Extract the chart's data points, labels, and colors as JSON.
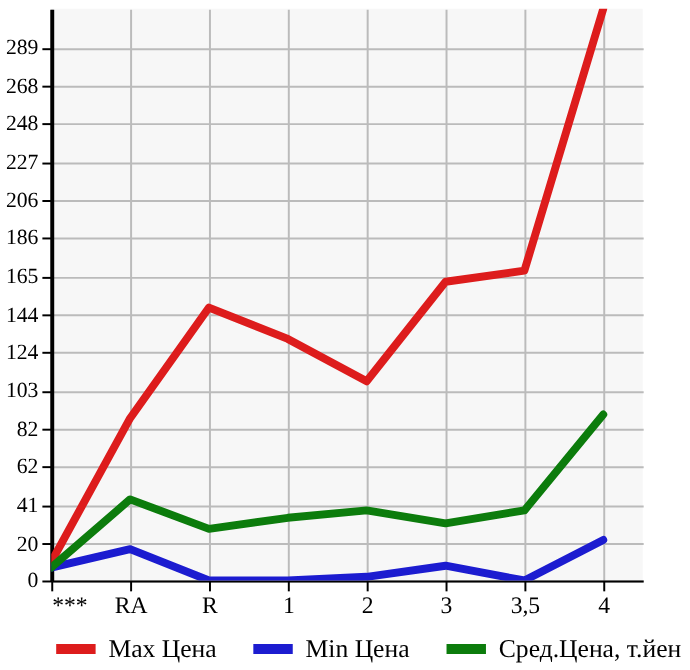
{
  "chart_data": {
    "type": "line",
    "categories": [
      "***",
      "RA",
      "R",
      "1",
      "2",
      "3",
      "3,5",
      "4"
    ],
    "series": [
      {
        "name": "Max Цена",
        "color": "#dd1c1c",
        "values": [
          10,
          88,
          148,
          131,
          108,
          162,
          168,
          310
        ]
      },
      {
        "name": "Min Цена",
        "color": "#1c1cd0",
        "values": [
          7,
          17,
          0,
          0,
          2,
          8,
          0,
          22
        ]
      },
      {
        "name": "Сред.Цена, т.йен",
        "color": "#0c7c0c",
        "values": [
          7,
          44,
          28,
          34,
          38,
          31,
          38,
          90
        ]
      }
    ],
    "ylim": [
      0,
      310
    ],
    "yticks": [
      0,
      20,
      41,
      62,
      82,
      103,
      124,
      144,
      165,
      186,
      206,
      227,
      248,
      268,
      289
    ],
    "grid": true,
    "legend": "bottom",
    "marker": "none",
    "line_style": "solid"
  }
}
